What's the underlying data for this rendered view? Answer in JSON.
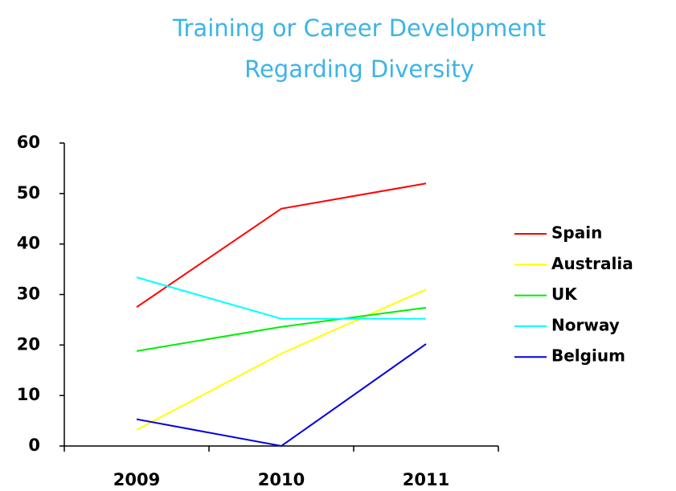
{
  "chart_data": {
    "type": "line",
    "title": [
      "Training or Career Development",
      "Regarding Diversity"
    ],
    "categories": [
      "2009",
      "2010",
      "2011"
    ],
    "series": [
      {
        "name": "Spain",
        "color": "#ff0000",
        "values": [
          27.5,
          47,
          52
        ]
      },
      {
        "name": "Australia",
        "color": "#ffff00",
        "values": [
          3.2,
          18.3,
          31
        ]
      },
      {
        "name": "UK",
        "color": "#00ee00",
        "values": [
          18.8,
          23.6,
          27.4
        ]
      },
      {
        "name": "Norway",
        "color": "#00ffff",
        "values": [
          33.4,
          25.2,
          25.2
        ]
      },
      {
        "name": "Belgium",
        "color": "#0000dd",
        "values": [
          5.3,
          0,
          20.2
        ]
      }
    ],
    "ylim": [
      0,
      60
    ],
    "yticks": [
      0,
      10,
      20,
      30,
      40,
      50,
      60
    ],
    "grid": false,
    "legend": "right"
  }
}
